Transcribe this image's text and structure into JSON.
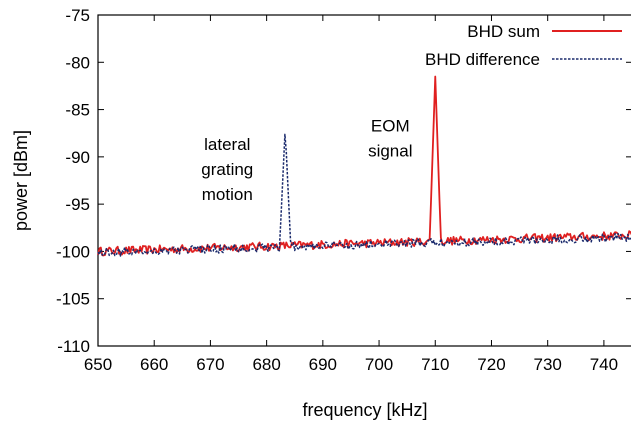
{
  "chart_data": {
    "type": "line",
    "xlabel": "frequency [kHz]",
    "ylabel": "power [dBm]",
    "xlim": [
      650,
      745
    ],
    "ylim": [
      -110,
      -75
    ],
    "x_ticks": [
      650,
      660,
      670,
      680,
      690,
      700,
      710,
      720,
      730,
      740
    ],
    "y_ticks": [
      -75,
      -80,
      -85,
      -90,
      -95,
      -100,
      -105,
      -110
    ],
    "grid": false,
    "legend": "top-right",
    "series": [
      {
        "name": "BHD sum",
        "color": "#e02020",
        "style": "solid",
        "baseline": -100.0,
        "slope_per_khz": 0.018,
        "noise_amplitude": 0.45,
        "peak": {
          "x": 710,
          "y": -81.5
        },
        "x": [
          650,
          652,
          654,
          656,
          658,
          660,
          662,
          664,
          666,
          668,
          670,
          672,
          674,
          676,
          678,
          680,
          682,
          684,
          686,
          688,
          690,
          692,
          694,
          696,
          698,
          700,
          702,
          704,
          706,
          708,
          709,
          709.5,
          710,
          710.5,
          711,
          712,
          714,
          716,
          718,
          720,
          722,
          724,
          726,
          728,
          730,
          732,
          734,
          736,
          738,
          740,
          742,
          744,
          745
        ],
        "y": [
          -100.1,
          -99.8,
          -100.2,
          -99.9,
          -100.3,
          -99.7,
          -100.0,
          -100.2,
          -99.6,
          -100.1,
          -99.9,
          -99.8,
          -99.5,
          -100.0,
          -99.7,
          -99.6,
          -99.8,
          -99.4,
          -99.5,
          -99.3,
          -99.6,
          -99.4,
          -99.2,
          -99.5,
          -99.3,
          -99.4,
          -99.2,
          -99.1,
          -99.3,
          -99.2,
          -99.0,
          -90.0,
          -81.5,
          -90.0,
          -99.1,
          -99.3,
          -99.0,
          -99.2,
          -98.9,
          -99.1,
          -99.2,
          -98.8,
          -99.0,
          -98.9,
          -98.7,
          -98.9,
          -98.6,
          -98.8,
          -98.7,
          -98.5,
          -98.6,
          -98.4,
          -98.6
        ]
      },
      {
        "name": "BHD difference",
        "color": "#1a2a6c",
        "style": "dashed",
        "baseline": -100.1,
        "slope_per_khz": 0.017,
        "noise_amplitude": 0.45,
        "peak": {
          "x": 683.3,
          "y": -87.0
        },
        "x": [
          650,
          652,
          654,
          656,
          658,
          660,
          662,
          664,
          666,
          668,
          670,
          672,
          674,
          676,
          678,
          680,
          682,
          682.8,
          683.3,
          683.8,
          684.5,
          686,
          688,
          690,
          692,
          694,
          696,
          698,
          700,
          702,
          704,
          706,
          708,
          710,
          712,
          714,
          716,
          718,
          720,
          722,
          724,
          726,
          728,
          730,
          732,
          734,
          736,
          738,
          740,
          742,
          744,
          745
        ],
        "y": [
          -100.2,
          -100.0,
          -100.4,
          -100.1,
          -99.9,
          -100.3,
          -99.8,
          -100.1,
          -99.9,
          -100.2,
          -99.7,
          -99.9,
          -99.6,
          -100.0,
          -99.8,
          -99.5,
          -99.4,
          -95.0,
          -87.0,
          -95.0,
          -99.3,
          -99.6,
          -99.4,
          -99.5,
          -99.3,
          -99.6,
          -99.2,
          -99.4,
          -99.3,
          -99.1,
          -99.4,
          -99.2,
          -99.0,
          -99.3,
          -99.1,
          -99.2,
          -98.9,
          -99.2,
          -99.0,
          -98.8,
          -99.1,
          -98.9,
          -98.7,
          -99.0,
          -98.8,
          -98.6,
          -98.8,
          -98.7,
          -98.5,
          -98.7,
          -98.4,
          -98.6
        ]
      }
    ],
    "annotations": [
      {
        "lines": [
          "lateral",
          "grating",
          "motion"
        ],
        "anchor_x": 673,
        "anchor_y": -89.3
      },
      {
        "lines": [
          "EOM",
          "signal"
        ],
        "anchor_x": 702,
        "anchor_y": -87.3
      }
    ]
  }
}
